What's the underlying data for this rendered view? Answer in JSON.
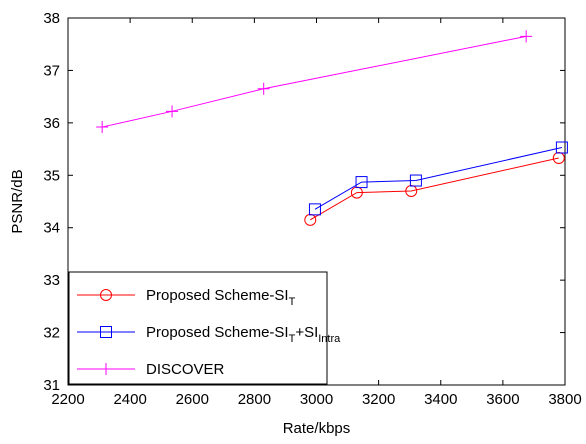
{
  "chart_data": {
    "type": "line",
    "xlabel": "Rate/kbps",
    "ylabel": "PSNR/dB",
    "xlim": [
      2200,
      3800
    ],
    "ylim": [
      31,
      38
    ],
    "xticks": [
      2200,
      2400,
      2600,
      2800,
      3000,
      3200,
      3400,
      3600,
      3800
    ],
    "yticks": [
      31,
      32,
      33,
      34,
      35,
      36,
      37,
      38
    ],
    "grid": false,
    "legend_position": "bottom-left",
    "series": [
      {
        "name": "Proposed Scheme-SI",
        "name_sub": "T",
        "name_tail": "",
        "name_tail_sub": "",
        "color": "#ff0000",
        "marker": "circle",
        "x": [
          2980,
          3130,
          3305,
          3780
        ],
        "y": [
          34.15,
          34.67,
          34.7,
          35.33
        ]
      },
      {
        "name": "Proposed Scheme-SI",
        "name_sub": "T",
        "name_tail": "+SI",
        "name_tail_sub": "Intra",
        "color": "#0000ff",
        "marker": "square",
        "x": [
          2995,
          3145,
          3320,
          3790
        ],
        "y": [
          34.35,
          34.87,
          34.9,
          35.53
        ]
      },
      {
        "name": "DISCOVER",
        "name_sub": "",
        "name_tail": "",
        "name_tail_sub": "",
        "color": "#ff00ff",
        "marker": "plus",
        "x": [
          2310,
          2535,
          2830,
          3675
        ],
        "y": [
          35.92,
          36.22,
          36.65,
          37.65
        ]
      }
    ]
  }
}
